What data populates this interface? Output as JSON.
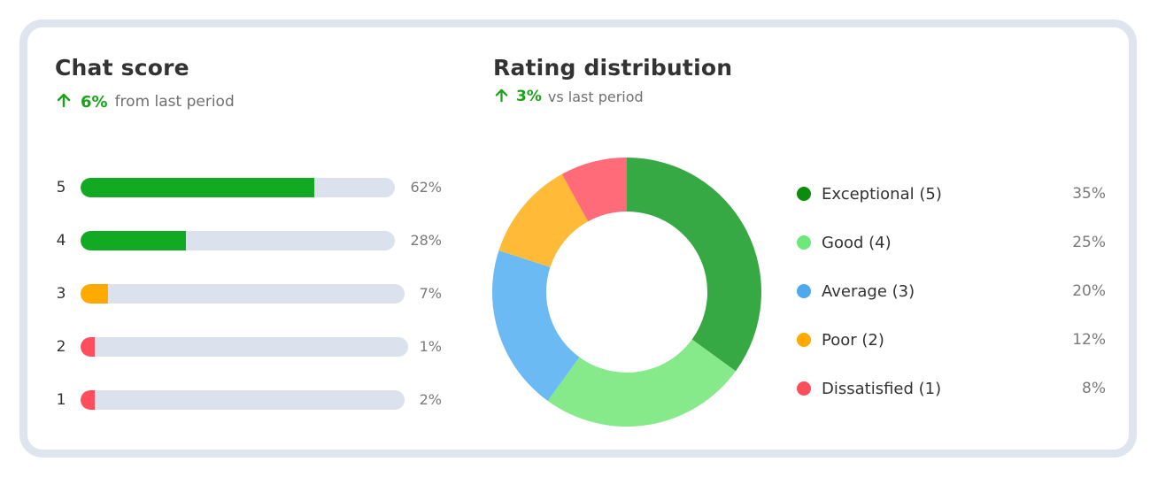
{
  "chat_score": {
    "title": "Chat score",
    "trend_value": "6%",
    "trend_text": "from last period"
  },
  "rating_distribution": {
    "title": "Rating distribution",
    "trend_value": "3%",
    "trend_text": "vs last period"
  },
  "chart_data": [
    {
      "type": "bar",
      "orientation": "horizontal",
      "categories": [
        "5",
        "4",
        "3",
        "2",
        "1"
      ],
      "values": [
        62,
        28,
        7,
        1,
        2
      ],
      "value_labels": [
        "62%",
        "28%",
        "7%",
        "1%",
        "2%"
      ],
      "colors": [
        "#12aa23",
        "#12aa23",
        "#ffaa00",
        "#ff4d5e",
        "#ff4d5e"
      ],
      "track_color": "#dbe1ed"
    },
    {
      "type": "pie",
      "style": "donut",
      "labels": [
        "Exceptional (5)",
        "Good (4)",
        "Average (3)",
        "Poor (2)",
        "Dissatisfied (1)"
      ],
      "values": [
        35,
        25,
        20,
        12,
        8
      ],
      "value_labels": [
        "35%",
        "25%",
        "20%",
        "12%",
        "8%"
      ],
      "slice_colors": [
        "#36a844",
        "#86e98a",
        "#6cbaf4",
        "#ffbb38",
        "#ff6b78"
      ],
      "legend_colors": [
        "#0b8c0b",
        "#6ee87a",
        "#4da8ee",
        "#ffaa00",
        "#ff4d5e"
      ],
      "legend_position": "right"
    }
  ],
  "colors": {
    "accent_green": "#19a319",
    "card_border": "#dfe5ef"
  }
}
